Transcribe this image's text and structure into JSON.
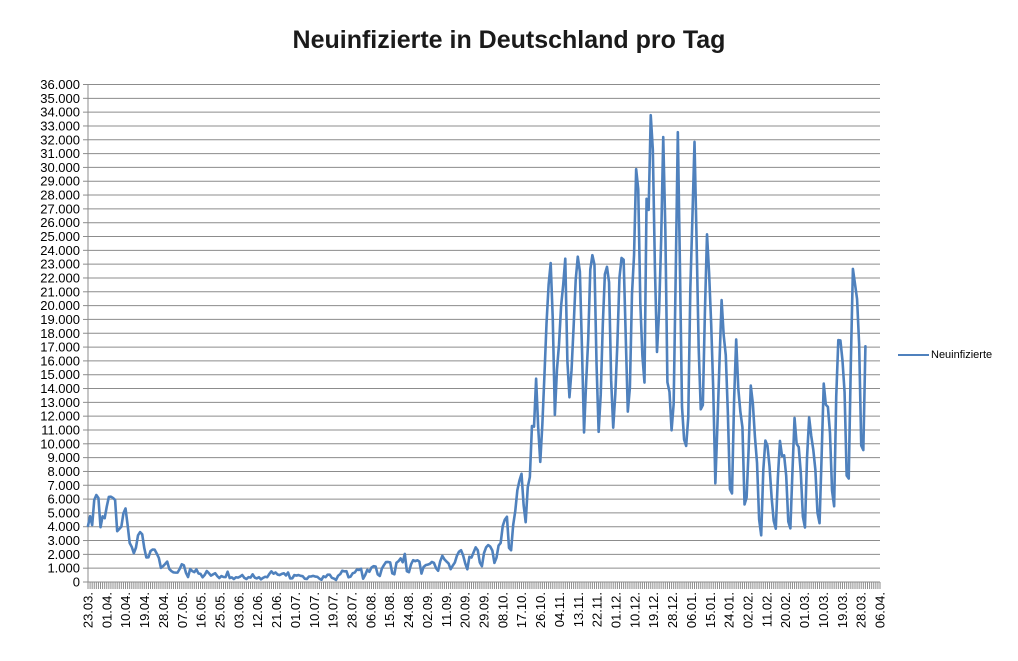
{
  "title": "Neuinfizierte in Deutschland pro Tag",
  "legend": {
    "label": "Neuinfizierte"
  },
  "colors": {
    "line": "#4F81BD",
    "gridline": "#8C8C8C",
    "axis": "#8C8C8C",
    "label_text": "#000000"
  },
  "chart_data": {
    "type": "line",
    "title": "Neuinfizierte in Deutschland pro Tag",
    "grid": "horizontal",
    "legend_position": "right",
    "y_axis": {
      "min": 0,
      "max": 36000,
      "step": 1000,
      "tick_labels": [
        "36.000",
        "35.000",
        "34.000",
        "33.000",
        "32.000",
        "31.000",
        "30.000",
        "29.000",
        "28.000",
        "27.000",
        "26.000",
        "25.000",
        "24.000",
        "23.000",
        "22.000",
        "21.000",
        "20.000",
        "19.000",
        "18.000",
        "17.000",
        "16.000",
        "15.000",
        "14.000",
        "13.000",
        "12.000",
        "11.000",
        "10.000",
        "9.000",
        "8.000",
        "7.000",
        "6.000",
        "5.000",
        "4.000",
        "3.000",
        "2.000",
        "1.000",
        "0"
      ]
    },
    "x_axis": {
      "tick_labels": [
        "23.03.",
        "01.04.",
        "10.04.",
        "19.04.",
        "28.04.",
        "07.05.",
        "16.05.",
        "25.05.",
        "03.06.",
        "12.06.",
        "21.06.",
        "01.07.",
        "10.07.",
        "19.07.",
        "28.07.",
        "06.08.",
        "15.08.",
        "24.08.",
        "02.09.",
        "11.09.",
        "20.09.",
        "29.09.",
        "08.10.",
        "17.10.",
        "26.10.",
        "04.11.",
        "13.11.",
        "22.11.",
        "01.12.",
        "10.12.",
        "19.12.",
        "28.12.",
        "06.01.",
        "15.01.",
        "24.01.",
        "02.02.",
        "11.02.",
        "20.02.",
        "01.03.",
        "10.03.",
        "19.03.",
        "28.03.",
        "06.04."
      ],
      "label_interval_days": 9,
      "total_slots": 380
    },
    "series": [
      {
        "name": "Neuinfizierte",
        "start_date": "23.03.",
        "values": [
          4062,
          4764,
          4118,
          5940,
          6294,
          6082,
          3965,
          4751,
          4615,
          5453,
          6156,
          6174,
          6082,
          5936,
          3677,
          3834,
          4003,
          4974,
          5323,
          4133,
          2821,
          2537,
          2082,
          2486,
          3380,
          3609,
          3456,
          2458,
          1775,
          1785,
          2237,
          2352,
          2337,
          2055,
          1737,
          1018,
          1144,
          1304,
          1478,
          945,
          793,
          697,
          679,
          685,
          947,
          1284,
          1209,
          667,
          357,
          933,
          798,
          710,
          913,
          620,
          583,
          342,
          513,
          797,
          639,
          460,
          548,
          638,
          431,
          289,
          432,
          362,
          353,
          741,
          286,
          333,
          213,
          342,
          318,
          394,
          507,
          301,
          214,
          350,
          318,
          555,
          318,
          258,
          348,
          192,
          300,
          378,
          345,
          580,
          770,
          601,
          687,
          537,
          503,
          587,
          630,
          477,
          687,
          256,
          262,
          498,
          466,
          503,
          446,
          422,
          239,
          219,
          390,
          397,
          442,
          395,
          378,
          248,
          159,
          412,
          351,
          534,
          529,
          305,
          249,
          147,
          454,
          569,
          815,
          769,
          781,
          340,
          390,
          633,
          684,
          902,
          870,
          955,
          240,
          509,
          879,
          741,
          1045,
          1147,
          1122,
          555,
          436,
          966,
          1226,
          1445,
          1449,
          1415,
          625,
          561,
          1390,
          1510,
          1707,
          1427,
          2034,
          782,
          711,
          1278,
          1576,
          1507,
          1571,
          1479,
          610,
          1083,
          1218,
          1256,
          1311,
          1453,
          1378,
          1000,
          814,
          1499,
          1892,
          1641,
          1484,
          1345,
          927,
          1184,
          1407,
          1901,
          2194,
          2297,
          1916,
          1345,
          922,
          1821,
          1769,
          2143,
          2507,
          2297,
          1411,
          1144,
          2089,
          2503,
          2673,
          2563,
          2279,
          1382,
          1763,
          2639,
          2828,
          4058,
          4516,
          4721,
          2467,
          2297,
          4122,
          5132,
          6638,
          7334,
          7830,
          5587,
          4325,
          6868,
          7595,
          11287,
          11242,
          14714,
          11176,
          8685,
          11409,
          14964,
          18733,
          21506,
          23080,
          19004,
          12097,
          15352,
          17214,
          19990,
          21506,
          23399,
          16017,
          13363,
          15332,
          18487,
          21866,
          23542,
          22461,
          16947,
          10824,
          14419,
          17561,
          22609,
          23648,
          22964,
          15741,
          10864,
          13554,
          18633,
          22268,
          22806,
          21695,
          14611,
          11169,
          13604,
          17270,
          22046,
          23449,
          23318,
          17767,
          12332,
          14054,
          20815,
          23679,
          29875,
          28438,
          20200,
          16362,
          14432,
          27728,
          26923,
          33777,
          31300,
          22771,
          16643,
          19528,
          24740,
          32195,
          25533,
          14455,
          13755,
          10976,
          12892,
          22459,
          32552,
          22924,
          12690,
          10315,
          9847,
          11897,
          21237,
          26391,
          31849,
          24694,
          16946,
          12497,
          12802,
          19600,
          25164,
          22368,
          18678,
          13882,
          7141,
          11369,
          15974,
          20398,
          17862,
          16417,
          12257,
          6729,
          6412,
          13202,
          17553,
          14022,
          12321,
          11192,
          5608,
          6114,
          9705,
          14211,
          12908,
          10485,
          8616,
          4535,
          3379,
          8072,
          10237,
          9860,
          8354,
          6114,
          4426,
          3856,
          7556,
          10207,
          9113,
          9164,
          7676,
          4369,
          3883,
          8007,
          11869,
          9997,
          9762,
          7890,
          4732,
          3943,
          9019,
          11912,
          10580,
          9557,
          8103,
          5011,
          4252,
          9146,
          14356,
          12834,
          12674,
          10790,
          6604,
          5480,
          13435,
          17504,
          17482,
          16033,
          13733,
          7709,
          7485,
          15813,
          22657,
          21573,
          20472,
          17176,
          9872,
          9549,
          17051
        ]
      }
    ]
  }
}
